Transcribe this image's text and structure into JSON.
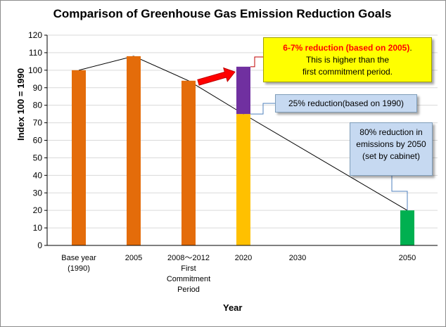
{
  "chart_data": {
    "type": "bar",
    "title": "Comparison of Greenhouse Gas Emission Reduction Goals",
    "xlabel": "Year",
    "ylabel": "Index 100 = 1990",
    "ylim": [
      0,
      120
    ],
    "yticks": [
      0,
      10,
      20,
      30,
      40,
      50,
      60,
      70,
      80,
      90,
      100,
      110,
      120
    ],
    "grid": true,
    "categories": [
      [
        "Base year",
        "(1990)"
      ],
      [
        "2005"
      ],
      [
        "2008〜2012",
        "First",
        "Commitment",
        "Period"
      ],
      [
        "2020"
      ],
      [
        "2030"
      ],
      [
        "2050"
      ]
    ],
    "bars": [
      {
        "category": "Base year (1990)",
        "value": 100,
        "color": "#e46c0a"
      },
      {
        "category": "2005",
        "value": 108,
        "color": "#e46c0a"
      },
      {
        "category": "2008〜2012 First Commitment Period",
        "value": 94,
        "color": "#e46c0a"
      },
      {
        "category": "2020",
        "value": 75,
        "color": "#ffc000",
        "segment": "25% reduction"
      },
      {
        "category": "2020",
        "value": 102,
        "base": 75,
        "color": "#7030a0",
        "segment": "6-7% reduction"
      },
      {
        "category": "2050",
        "value": 20,
        "color": "#00b050"
      }
    ],
    "trend_line": [
      {
        "category": "Base year (1990)",
        "y": 100
      },
      {
        "category": "2005",
        "y": 108
      },
      {
        "category": "2008〜2012 First Commitment Period",
        "y": 94
      },
      {
        "category": "2020",
        "y": 75
      },
      {
        "category": "2050",
        "y": 20
      }
    ],
    "annotations": {
      "callout_1": {
        "bold_red": "6-7% reduction (based on 2005)",
        "after": ".",
        "line2": "This is higher than the",
        "line3": "first commitment period."
      },
      "callout_2": "25% reduction(based on 1990)",
      "callout_3": [
        "80% reduction in",
        "emissions by 2050",
        "(set by cabinet)"
      ]
    },
    "colors": {
      "orange_bar": "#e46c0a",
      "gold_bar": "#ffc000",
      "purple_bar": "#7030a0",
      "green_bar": "#00b050",
      "arrow": "#ff0000",
      "callout_yellow": "#ffff00",
      "callout_blue": "#c6d9f1",
      "grid": "#d9d9d9"
    }
  }
}
